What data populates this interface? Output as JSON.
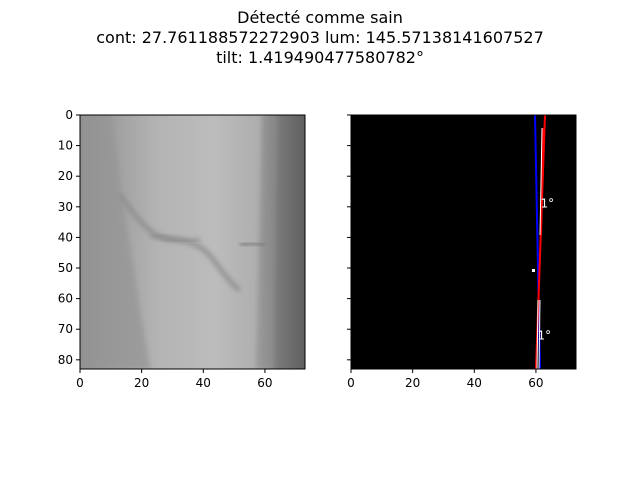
{
  "title": {
    "line1": "Détecté comme sain",
    "line2": "cont: 27.761188572272903 lum: 145.57138141607527",
    "line3": "tilt: 1.419490477580782°"
  },
  "chart_data": [
    {
      "type": "heatmap",
      "panel": "left",
      "content": "grayscale bone image",
      "xlim": [
        0,
        73
      ],
      "ylim": [
        83,
        0
      ],
      "xticks": [
        0,
        20,
        40,
        60
      ],
      "yticks": [
        0,
        10,
        20,
        30,
        40,
        50,
        60,
        70,
        80
      ]
    },
    {
      "type": "heatmap",
      "panel": "right",
      "content": "detected edge lines on black background",
      "xlim": [
        0,
        73
      ],
      "ylim": [
        83,
        0
      ],
      "xticks": [
        0,
        20,
        40,
        60
      ],
      "yticks": [
        0,
        10,
        20,
        30,
        40,
        50,
        60,
        70,
        80
      ],
      "colors": {
        "edge": "#ff0000",
        "axis_line": "#0000ff",
        "fit_line": "#ffffff",
        "background": "#000000"
      },
      "annotations": [
        {
          "text": "1°",
          "x": 61.5,
          "y": 29
        },
        {
          "text": "1°",
          "x": 60.5,
          "y": 72
        }
      ]
    }
  ]
}
